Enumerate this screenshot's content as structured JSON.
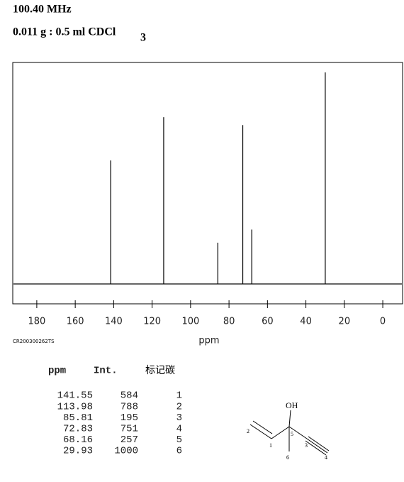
{
  "header": {
    "frequency": "100.40 MHz",
    "sample": "0.011 g : 0.5 ml CDCl",
    "sample_sub": "3",
    "code": "CR200300262TS"
  },
  "chart_data": {
    "type": "stick",
    "xlabel": "ppm",
    "x": [
      141.55,
      113.98,
      85.81,
      72.83,
      68.16,
      29.93
    ],
    "values": [
      584,
      788,
      195,
      751,
      257,
      1000
    ],
    "color": "#000000",
    "xlim": [
      192.5,
      -10.3
    ],
    "ylim": [
      -94,
      1047
    ],
    "xticks": [
      180,
      160,
      140,
      120,
      100,
      80,
      60,
      40,
      20,
      0
    ]
  },
  "table": {
    "headers": [
      "ppm",
      "Int.",
      "标记碳"
    ],
    "carbons": [
      1,
      2,
      3,
      4,
      5,
      6
    ]
  },
  "structure": {
    "labels": [
      "OH",
      "2",
      "1",
      "5",
      "3",
      "4",
      "6"
    ]
  }
}
